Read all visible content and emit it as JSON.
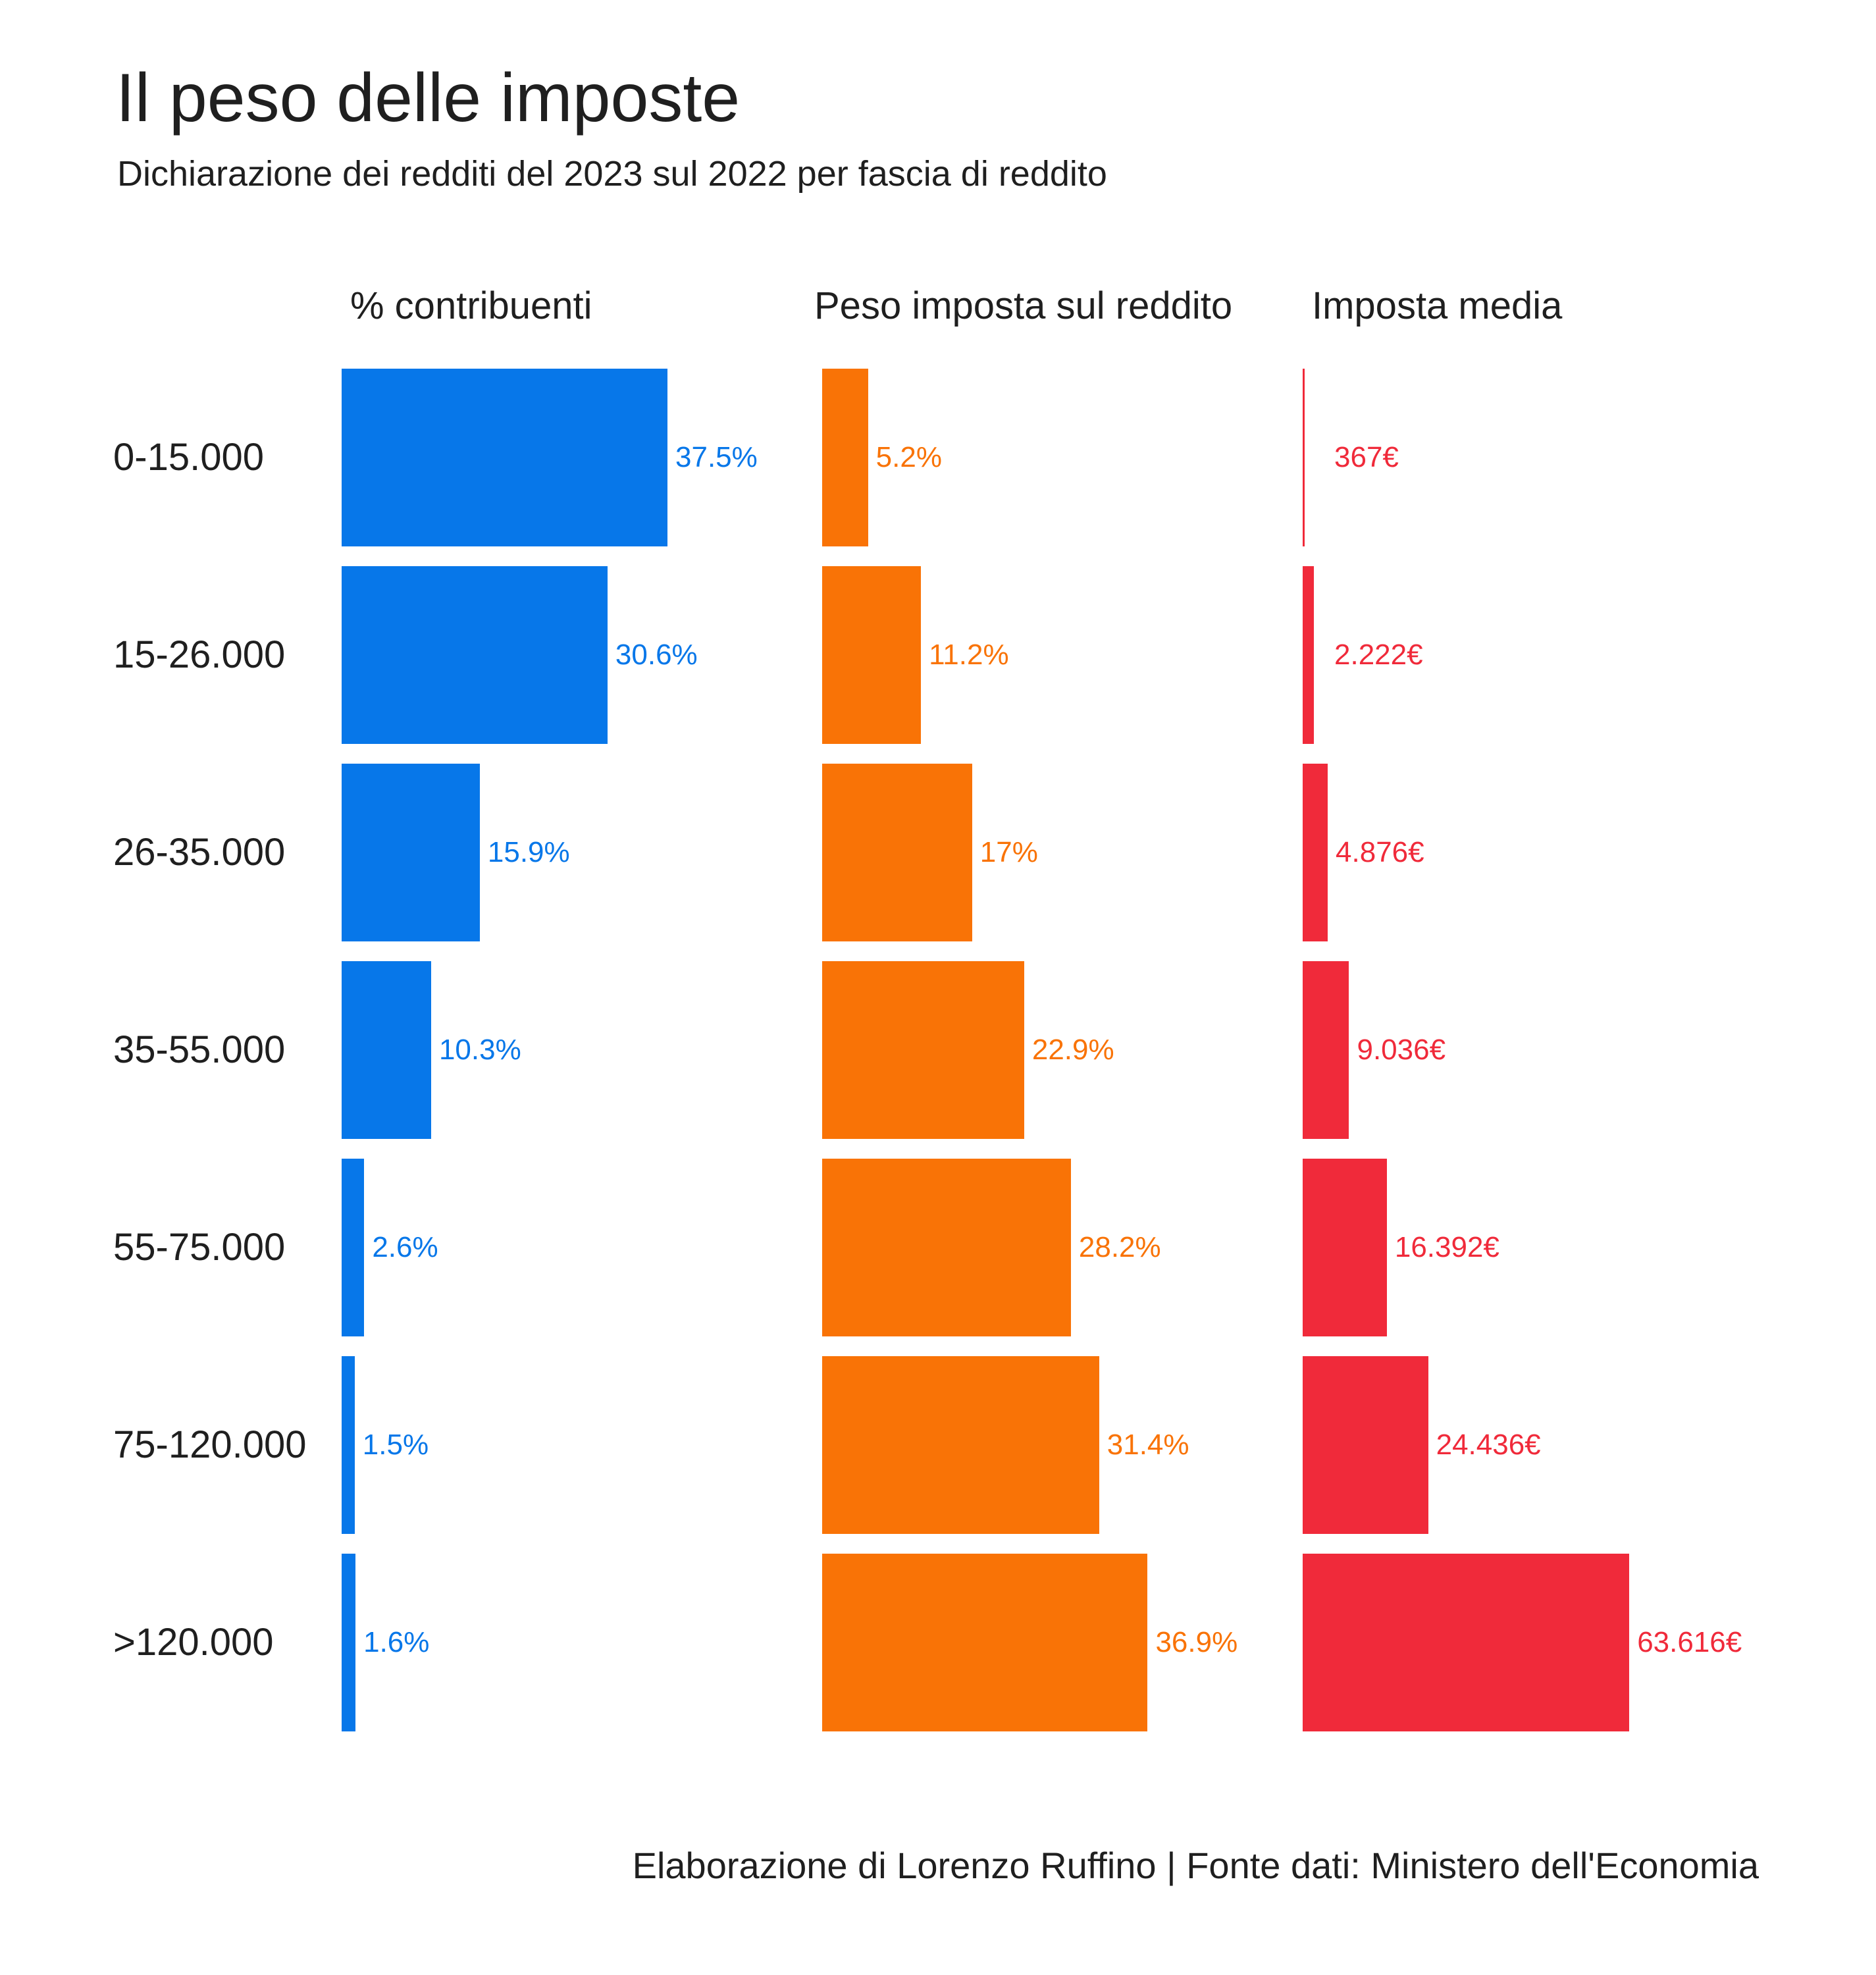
{
  "title": "Il peso delle imposte",
  "subtitle": "Dichiarazione dei redditi del 2023 sul 2022 per fascia di reddito",
  "footer": "Elaborazione di Lorenzo Ruffino | Fonte dati: Ministero dell'Economia",
  "chart_data": {
    "type": "bar",
    "orientation": "horizontal",
    "categories": [
      "0-15.000",
      "15-26.000",
      "26-35.000",
      "35-55.000",
      "55-75.000",
      "75-120.000",
      ">120.000"
    ],
    "series": [
      {
        "name": "% contribuenti",
        "color": "#0777E9",
        "values": [
          37.5,
          30.6,
          15.9,
          10.3,
          2.6,
          1.5,
          1.6
        ],
        "labels": [
          "37.5%",
          "30.6%",
          "15.9%",
          "10.3%",
          "2.6%",
          "1.5%",
          "1.6%"
        ]
      },
      {
        "name": "Peso imposta sul reddito",
        "color": "#F97306",
        "values": [
          5.2,
          11.2,
          17,
          22.9,
          28.2,
          31.4,
          36.9
        ],
        "labels": [
          "5.2%",
          "11.2%",
          "17%",
          "22.9%",
          "28.2%",
          "31.4%",
          "36.9%"
        ]
      },
      {
        "name": "Imposta media",
        "color": "#F02A3A",
        "values": [
          367,
          2222,
          4876,
          9036,
          16392,
          24436,
          63616
        ],
        "labels": [
          "367€",
          "2.222€",
          "4.876€",
          "9.036€",
          "16.392€",
          "24.436€",
          "63.616€"
        ]
      }
    ],
    "grid": false,
    "legend": "none"
  }
}
